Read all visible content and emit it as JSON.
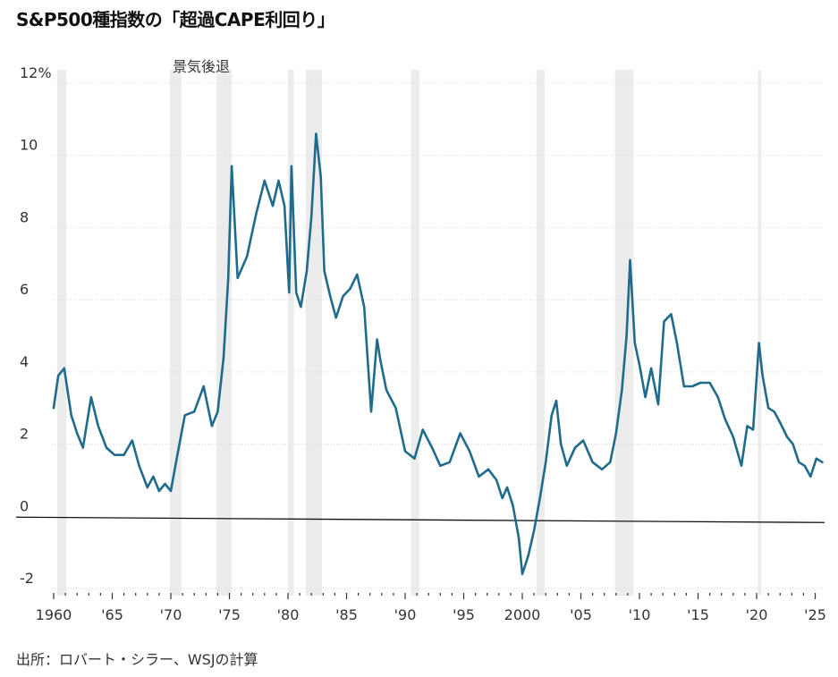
{
  "title": "S&P500種指数の「超過CAPE利回り」",
  "source": "出所：ロバート・シラー、WSJの計算",
  "chart_data": {
    "type": "line",
    "title": "S&P500種指数の「超過CAPE利回り」",
    "ylabel": "",
    "xlabel": "",
    "ylim": [
      -2,
      12
    ],
    "xlim": [
      1960,
      2025.8
    ],
    "y_ticks": [
      {
        "value": 12,
        "label": "12%"
      },
      {
        "value": 10,
        "label": "10"
      },
      {
        "value": 8,
        "label": "8"
      },
      {
        "value": 6,
        "label": "6"
      },
      {
        "value": 4,
        "label": "4"
      },
      {
        "value": 2,
        "label": "2"
      },
      {
        "value": 0,
        "label": "0"
      },
      {
        "value": -2,
        "label": "-2"
      }
    ],
    "x_ticks": [
      {
        "value": 1960,
        "label": "1960"
      },
      {
        "value": 1965,
        "label": "'65"
      },
      {
        "value": 1970,
        "label": "'70"
      },
      {
        "value": 1975,
        "label": "'75"
      },
      {
        "value": 1980,
        "label": "'80"
      },
      {
        "value": 1985,
        "label": "'85"
      },
      {
        "value": 1990,
        "label": "'90"
      },
      {
        "value": 1995,
        "label": "'95"
      },
      {
        "value": 2000,
        "label": "2000"
      },
      {
        "value": 2005,
        "label": "'05"
      },
      {
        "value": 2010,
        "label": "'10"
      },
      {
        "value": 2015,
        "label": "'15"
      },
      {
        "value": 2020,
        "label": "'20"
      },
      {
        "value": 2025,
        "label": "'25"
      }
    ],
    "legend": {
      "label": "景気後退",
      "color": "#ececec",
      "placement": "top-left"
    },
    "recessions": [
      [
        1960.3,
        1961.1
      ],
      [
        1969.9,
        1970.9
      ],
      [
        1973.9,
        1975.2
      ],
      [
        1980.0,
        1980.5
      ],
      [
        1981.5,
        1982.9
      ],
      [
        1990.5,
        1991.2
      ],
      [
        2001.2,
        2001.9
      ],
      [
        2007.9,
        2009.5
      ],
      [
        2020.1,
        2020.4
      ]
    ],
    "colors": {
      "line": "#1f6b8c",
      "zero_line": "#111111",
      "grid": "#d9d9d9",
      "recession": "#ececec"
    },
    "grid": true,
    "series": [
      {
        "name": "",
        "x": [
          1960.0,
          1960.4,
          1960.9,
          1961.5,
          1962.0,
          1962.5,
          1963.2,
          1963.8,
          1964.5,
          1965.2,
          1966.0,
          1966.7,
          1967.3,
          1968.0,
          1968.5,
          1969.0,
          1969.5,
          1970.0,
          1970.5,
          1971.2,
          1972.0,
          1972.8,
          1973.5,
          1974.0,
          1974.5,
          1974.9,
          1975.2,
          1975.7,
          1976.5,
          1977.3,
          1978.0,
          1978.7,
          1979.2,
          1979.7,
          1980.1,
          1980.3,
          1980.7,
          1981.1,
          1981.6,
          1982.0,
          1982.4,
          1982.8,
          1983.1,
          1983.6,
          1984.1,
          1984.7,
          1985.3,
          1985.9,
          1986.5,
          1987.1,
          1987.6,
          1987.9,
          1988.4,
          1989.2,
          1990.0,
          1990.8,
          1991.5,
          1992.3,
          1993.0,
          1993.8,
          1994.7,
          1995.5,
          1996.3,
          1997.1,
          1997.8,
          1998.3,
          1998.7,
          1999.2,
          1999.7,
          2000.0,
          2000.5,
          2001.0,
          2001.5,
          2002.0,
          2002.5,
          2002.9,
          2003.3,
          2003.8,
          2004.5,
          2005.2,
          2006.0,
          2006.8,
          2007.5,
          2008.0,
          2008.5,
          2008.9,
          2009.2,
          2009.6,
          2010.0,
          2010.5,
          2011.0,
          2011.6,
          2012.1,
          2012.7,
          2013.2,
          2013.8,
          2014.5,
          2015.2,
          2016.0,
          2016.7,
          2017.3,
          2018.0,
          2018.7,
          2019.2,
          2019.7,
          2020.2,
          2020.5,
          2021.0,
          2021.5,
          2022.0,
          2022.6,
          2023.1,
          2023.6,
          2024.1,
          2024.6,
          2025.1,
          2025.6
        ],
        "values": [
          3.0,
          3.9,
          4.1,
          2.8,
          2.3,
          1.9,
          3.3,
          2.5,
          1.9,
          1.7,
          1.7,
          2.1,
          1.4,
          0.8,
          1.1,
          0.7,
          0.9,
          0.7,
          1.6,
          2.8,
          2.9,
          3.6,
          2.5,
          2.9,
          4.4,
          6.6,
          9.7,
          6.6,
          7.2,
          8.4,
          9.3,
          8.6,
          9.3,
          8.6,
          6.2,
          9.7,
          6.2,
          5.8,
          6.8,
          8.3,
          10.6,
          9.4,
          6.8,
          6.1,
          5.5,
          6.1,
          6.3,
          6.7,
          5.8,
          2.9,
          4.9,
          4.3,
          3.5,
          3.0,
          1.8,
          1.6,
          2.4,
          1.9,
          1.4,
          1.5,
          2.3,
          1.8,
          1.1,
          1.3,
          1.0,
          0.5,
          0.8,
          0.3,
          -0.6,
          -1.6,
          -1.1,
          -0.4,
          0.5,
          1.5,
          2.8,
          3.2,
          2.0,
          1.4,
          1.9,
          2.1,
          1.5,
          1.3,
          1.5,
          2.3,
          3.5,
          5.0,
          7.1,
          4.8,
          4.2,
          3.3,
          4.1,
          3.1,
          5.4,
          5.6,
          4.8,
          3.6,
          3.6,
          3.7,
          3.7,
          3.3,
          2.7,
          2.2,
          1.4,
          2.5,
          2.4,
          4.8,
          3.9,
          3.0,
          2.9,
          2.6,
          2.2,
          2.0,
          1.5,
          1.4,
          1.1,
          1.6,
          1.5
        ]
      }
    ]
  }
}
